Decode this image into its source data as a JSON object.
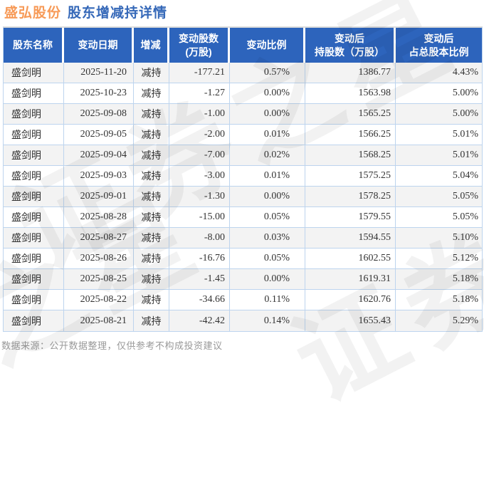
{
  "title": {
    "company": "盛弘股份",
    "subtitle": "股东增减持详情"
  },
  "table": {
    "columns": [
      {
        "label": "股东名称"
      },
      {
        "label": "变动日期"
      },
      {
        "label": "增减"
      },
      {
        "label": "变动股数\n(万股)"
      },
      {
        "label": "变动比例"
      },
      {
        "label": "变动后\n持股数（万股）"
      },
      {
        "label": "变动后\n占总股本比例"
      }
    ],
    "rows": [
      {
        "name": "盛剑明",
        "date": "2025-11-20",
        "action": "减持",
        "shares": "-177.21",
        "ratio": "0.57%",
        "after_shares": "1386.77",
        "after_ratio": "4.43%"
      },
      {
        "name": "盛剑明",
        "date": "2025-10-23",
        "action": "减持",
        "shares": "-1.27",
        "ratio": "0.00%",
        "after_shares": "1563.98",
        "after_ratio": "5.00%"
      },
      {
        "name": "盛剑明",
        "date": "2025-09-08",
        "action": "减持",
        "shares": "-1.00",
        "ratio": "0.00%",
        "after_shares": "1565.25",
        "after_ratio": "5.00%"
      },
      {
        "name": "盛剑明",
        "date": "2025-09-05",
        "action": "减持",
        "shares": "-2.00",
        "ratio": "0.01%",
        "after_shares": "1566.25",
        "after_ratio": "5.01%"
      },
      {
        "name": "盛剑明",
        "date": "2025-09-04",
        "action": "减持",
        "shares": "-7.00",
        "ratio": "0.02%",
        "after_shares": "1568.25",
        "after_ratio": "5.01%"
      },
      {
        "name": "盛剑明",
        "date": "2025-09-03",
        "action": "减持",
        "shares": "-3.00",
        "ratio": "0.01%",
        "after_shares": "1575.25",
        "after_ratio": "5.04%"
      },
      {
        "name": "盛剑明",
        "date": "2025-09-01",
        "action": "减持",
        "shares": "-1.30",
        "ratio": "0.00%",
        "after_shares": "1578.25",
        "after_ratio": "5.05%"
      },
      {
        "name": "盛剑明",
        "date": "2025-08-28",
        "action": "减持",
        "shares": "-15.00",
        "ratio": "0.05%",
        "after_shares": "1579.55",
        "after_ratio": "5.05%"
      },
      {
        "name": "盛剑明",
        "date": "2025-08-27",
        "action": "减持",
        "shares": "-8.00",
        "ratio": "0.03%",
        "after_shares": "1594.55",
        "after_ratio": "5.10%"
      },
      {
        "name": "盛剑明",
        "date": "2025-08-26",
        "action": "减持",
        "shares": "-16.76",
        "ratio": "0.05%",
        "after_shares": "1602.55",
        "after_ratio": "5.12%"
      },
      {
        "name": "盛剑明",
        "date": "2025-08-25",
        "action": "减持",
        "shares": "-1.45",
        "ratio": "0.00%",
        "after_shares": "1619.31",
        "after_ratio": "5.18%"
      },
      {
        "name": "盛剑明",
        "date": "2025-08-22",
        "action": "减持",
        "shares": "-34.66",
        "ratio": "0.11%",
        "after_shares": "1620.76",
        "after_ratio": "5.18%"
      },
      {
        "name": "盛剑明",
        "date": "2025-08-21",
        "action": "减持",
        "shares": "-42.42",
        "ratio": "0.14%",
        "after_shares": "1655.43",
        "after_ratio": "5.29%"
      }
    ]
  },
  "footer": {
    "note": "数据来源：公开数据整理，仅供参考不构成投资建议"
  },
  "watermark": {
    "text": "证券之星"
  },
  "colors": {
    "header_blue": "#2d64bc",
    "title_orange": "#f79a57",
    "title_blue": "#3568b8",
    "value_green": "#1ea53c",
    "border_blue": "#bdd4ee",
    "alt_row_gray": "#f3f3f3"
  }
}
